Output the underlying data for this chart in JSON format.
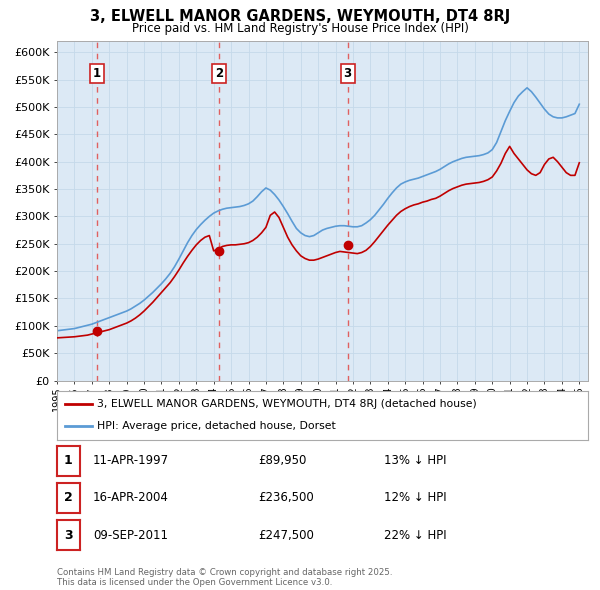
{
  "title": "3, ELWELL MANOR GARDENS, WEYMOUTH, DT4 8RJ",
  "subtitle": "Price paid vs. HM Land Registry's House Price Index (HPI)",
  "plot_bg_color": "#dce9f5",
  "ylim": [
    0,
    620000
  ],
  "yticks": [
    0,
    50000,
    100000,
    150000,
    200000,
    250000,
    300000,
    350000,
    400000,
    450000,
    500000,
    550000,
    600000
  ],
  "ytick_labels": [
    "£0",
    "£50K",
    "£100K",
    "£150K",
    "£200K",
    "£250K",
    "£300K",
    "£350K",
    "£400K",
    "£450K",
    "£500K",
    "£550K",
    "£600K"
  ],
  "xlim_start": 1995.0,
  "xlim_end": 2025.5,
  "sale_dates": [
    1997.28,
    2004.29,
    2011.69
  ],
  "sale_prices": [
    89950,
    236500,
    247500
  ],
  "sale_labels": [
    "1",
    "2",
    "3"
  ],
  "sale_label_info": [
    {
      "label": "1",
      "date": "11-APR-1997",
      "price": "£89,950",
      "pct": "13% ↓ HPI"
    },
    {
      "label": "2",
      "date": "16-APR-2004",
      "price": "£236,500",
      "pct": "12% ↓ HPI"
    },
    {
      "label": "3",
      "date": "09-SEP-2011",
      "price": "£247,500",
      "pct": "22% ↓ HPI"
    }
  ],
  "hpi_color": "#5b9bd5",
  "sale_color": "#c00000",
  "vline_color": "#e06060",
  "grid_color": "#c5d9ea",
  "hpi_x": [
    1995.0,
    1995.25,
    1995.5,
    1995.75,
    1996.0,
    1996.25,
    1996.5,
    1996.75,
    1997.0,
    1997.25,
    1997.5,
    1997.75,
    1998.0,
    1998.25,
    1998.5,
    1998.75,
    1999.0,
    1999.25,
    1999.5,
    1999.75,
    2000.0,
    2000.25,
    2000.5,
    2000.75,
    2001.0,
    2001.25,
    2001.5,
    2001.75,
    2002.0,
    2002.25,
    2002.5,
    2002.75,
    2003.0,
    2003.25,
    2003.5,
    2003.75,
    2004.0,
    2004.25,
    2004.5,
    2004.75,
    2005.0,
    2005.25,
    2005.5,
    2005.75,
    2006.0,
    2006.25,
    2006.5,
    2006.75,
    2007.0,
    2007.25,
    2007.5,
    2007.75,
    2008.0,
    2008.25,
    2008.5,
    2008.75,
    2009.0,
    2009.25,
    2009.5,
    2009.75,
    2010.0,
    2010.25,
    2010.5,
    2010.75,
    2011.0,
    2011.25,
    2011.5,
    2011.75,
    2012.0,
    2012.25,
    2012.5,
    2012.75,
    2013.0,
    2013.25,
    2013.5,
    2013.75,
    2014.0,
    2014.25,
    2014.5,
    2014.75,
    2015.0,
    2015.25,
    2015.5,
    2015.75,
    2016.0,
    2016.25,
    2016.5,
    2016.75,
    2017.0,
    2017.25,
    2017.5,
    2017.75,
    2018.0,
    2018.25,
    2018.5,
    2018.75,
    2019.0,
    2019.25,
    2019.5,
    2019.75,
    2020.0,
    2020.25,
    2020.5,
    2020.75,
    2021.0,
    2021.25,
    2021.5,
    2021.75,
    2022.0,
    2022.25,
    2022.5,
    2022.75,
    2023.0,
    2023.25,
    2023.5,
    2023.75,
    2024.0,
    2024.25,
    2024.5,
    2024.75,
    2025.0
  ],
  "hpi_y": [
    91000,
    92000,
    93000,
    94000,
    95000,
    97000,
    99000,
    101000,
    103000,
    106000,
    109000,
    112000,
    115000,
    118000,
    121000,
    124000,
    127000,
    131000,
    136000,
    141000,
    147000,
    154000,
    161000,
    169000,
    177000,
    186000,
    196000,
    208000,
    222000,
    237000,
    252000,
    265000,
    276000,
    285000,
    293000,
    300000,
    306000,
    310000,
    313000,
    315000,
    316000,
    317000,
    318000,
    320000,
    323000,
    328000,
    336000,
    345000,
    352000,
    348000,
    340000,
    330000,
    318000,
    305000,
    291000,
    278000,
    270000,
    265000,
    263000,
    265000,
    270000,
    275000,
    278000,
    280000,
    282000,
    283000,
    283000,
    282000,
    281000,
    281000,
    283000,
    288000,
    294000,
    302000,
    312000,
    322000,
    333000,
    343000,
    352000,
    359000,
    363000,
    366000,
    368000,
    370000,
    373000,
    376000,
    379000,
    382000,
    386000,
    391000,
    396000,
    400000,
    403000,
    406000,
    408000,
    409000,
    410000,
    411000,
    413000,
    416000,
    422000,
    435000,
    455000,
    475000,
    492000,
    508000,
    520000,
    528000,
    535000,
    528000,
    518000,
    507000,
    496000,
    487000,
    482000,
    480000,
    480000,
    482000,
    485000,
    488000,
    505000
  ],
  "sale_line_x": [
    1995.0,
    1995.25,
    1995.5,
    1995.75,
    1996.0,
    1996.25,
    1996.5,
    1996.75,
    1997.0,
    1997.25,
    1997.5,
    1997.75,
    1998.0,
    1998.25,
    1998.5,
    1998.75,
    1999.0,
    1999.25,
    1999.5,
    1999.75,
    2000.0,
    2000.25,
    2000.5,
    2000.75,
    2001.0,
    2001.25,
    2001.5,
    2001.75,
    2002.0,
    2002.25,
    2002.5,
    2002.75,
    2003.0,
    2003.25,
    2003.5,
    2003.75,
    2004.0,
    2004.25,
    2004.5,
    2004.75,
    2005.0,
    2005.25,
    2005.5,
    2005.75,
    2006.0,
    2006.25,
    2006.5,
    2006.75,
    2007.0,
    2007.25,
    2007.5,
    2007.75,
    2008.0,
    2008.25,
    2008.5,
    2008.75,
    2009.0,
    2009.25,
    2009.5,
    2009.75,
    2010.0,
    2010.25,
    2010.5,
    2010.75,
    2011.0,
    2011.25,
    2011.5,
    2011.75,
    2012.0,
    2012.25,
    2012.5,
    2012.75,
    2013.0,
    2013.25,
    2013.5,
    2013.75,
    2014.0,
    2014.25,
    2014.5,
    2014.75,
    2015.0,
    2015.25,
    2015.5,
    2015.75,
    2016.0,
    2016.25,
    2016.5,
    2016.75,
    2017.0,
    2017.25,
    2017.5,
    2017.75,
    2018.0,
    2018.25,
    2018.5,
    2018.75,
    2019.0,
    2019.25,
    2019.5,
    2019.75,
    2020.0,
    2020.25,
    2020.5,
    2020.75,
    2021.0,
    2021.25,
    2021.5,
    2021.75,
    2022.0,
    2022.25,
    2022.5,
    2022.75,
    2023.0,
    2023.25,
    2023.5,
    2023.75,
    2024.0,
    2024.25,
    2024.5,
    2024.75,
    2025.0
  ],
  "sale_line_y": [
    78000,
    78500,
    79000,
    79500,
    80000,
    81000,
    82000,
    83000,
    85000,
    87000,
    89000,
    91000,
    93000,
    96000,
    99000,
    102000,
    105000,
    109000,
    114000,
    120000,
    127000,
    135000,
    143000,
    152000,
    161000,
    170000,
    179000,
    190000,
    202000,
    215000,
    227000,
    238000,
    248000,
    256000,
    262000,
    265000,
    237000,
    240000,
    245000,
    247000,
    248000,
    248000,
    249000,
    250000,
    252000,
    256000,
    262000,
    270000,
    280000,
    302000,
    308000,
    298000,
    280000,
    262000,
    248000,
    237000,
    228000,
    223000,
    220000,
    220000,
    222000,
    225000,
    228000,
    231000,
    234000,
    236000,
    235000,
    234000,
    233000,
    232000,
    234000,
    238000,
    245000,
    254000,
    264000,
    274000,
    284000,
    293000,
    302000,
    309000,
    314000,
    318000,
    321000,
    323000,
    326000,
    328000,
    331000,
    333000,
    337000,
    342000,
    347000,
    351000,
    354000,
    357000,
    359000,
    360000,
    361000,
    362000,
    364000,
    367000,
    372000,
    383000,
    397000,
    415000,
    428000,
    415000,
    405000,
    395000,
    385000,
    378000,
    375000,
    380000,
    395000,
    405000,
    408000,
    400000,
    390000,
    380000,
    375000,
    375000,
    398000
  ],
  "footer": "Contains HM Land Registry data © Crown copyright and database right 2025.\nThis data is licensed under the Open Government Licence v3.0.",
  "legend_label_red": "3, ELWELL MANOR GARDENS, WEYMOUTH, DT4 8RJ (detached house)",
  "legend_label_blue": "HPI: Average price, detached house, Dorset"
}
